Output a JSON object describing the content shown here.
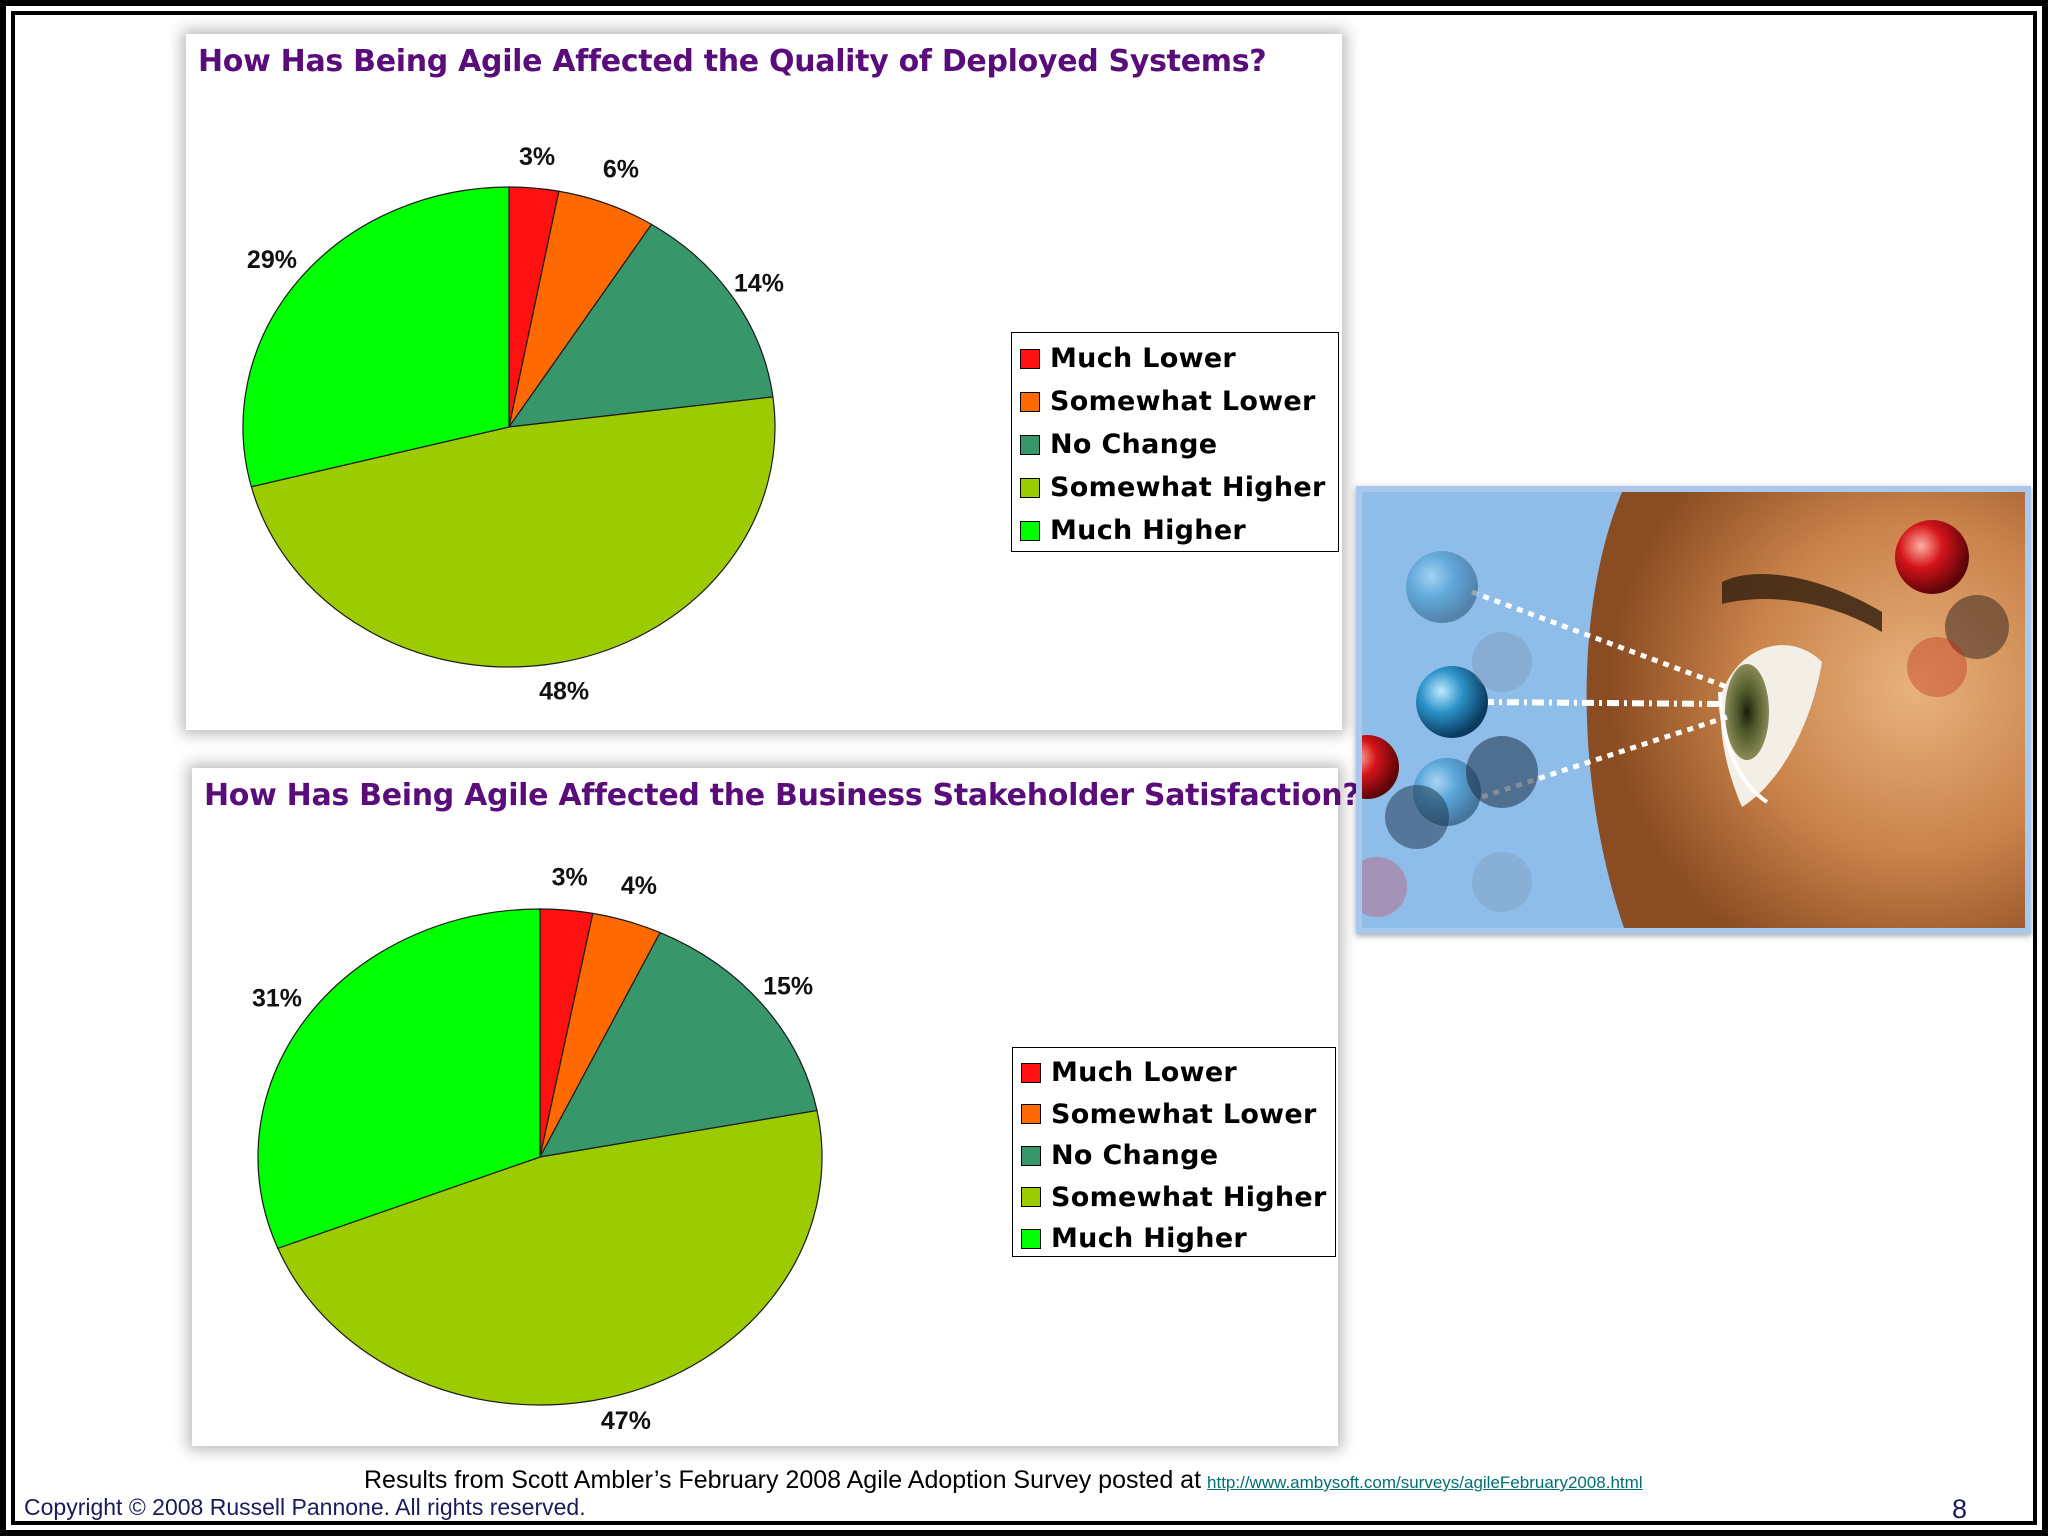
{
  "colors": {
    "title": "#5a0d7a",
    "much_lower": "#ff1111",
    "somewhat_lower": "#ff6a00",
    "no_change": "#37976a",
    "somewhat_higher": "#9bcb00",
    "much_higher": "#00ff00",
    "footer_text": "#1b1b5c",
    "link": "#006f73"
  },
  "chart_data": [
    {
      "type": "pie",
      "title": "How Has Being Agile Affected the Quality of Deployed Systems?",
      "categories": [
        "Much Lower",
        "Somewhat Lower",
        "No Change",
        "Somewhat Higher",
        "Much Higher"
      ],
      "values": [
        3,
        6,
        14,
        48,
        29
      ],
      "labels": [
        "3%",
        "6%",
        "14%",
        "48%",
        "29%"
      ],
      "start_angle": "12 o'clock, clockwise",
      "legend": "right"
    },
    {
      "type": "pie",
      "title": "How Has Being Agile Affected the Business Stakeholder Satisfaction?",
      "categories": [
        "Much Lower",
        "Somewhat Lower",
        "No Change",
        "Somewhat Higher",
        "Much Higher"
      ],
      "values": [
        3,
        4,
        15,
        47,
        31
      ],
      "labels": [
        "3%",
        "4%",
        "15%",
        "47%",
        "31%"
      ],
      "start_angle": "12 o'clock, clockwise",
      "legend": "right"
    }
  ],
  "footer": {
    "note": "Results from Scott Ambler’s February 2008 Agile Adoption Survey posted at",
    "link": "http://www.ambysoft.com/surveys/agileFebruary2008.html",
    "copyright": "Copyright © 2008 Russell Pannone. All rights reserved.",
    "page_number": "8"
  },
  "illustration": {
    "description_icon": "eye-molecule-illustration"
  }
}
